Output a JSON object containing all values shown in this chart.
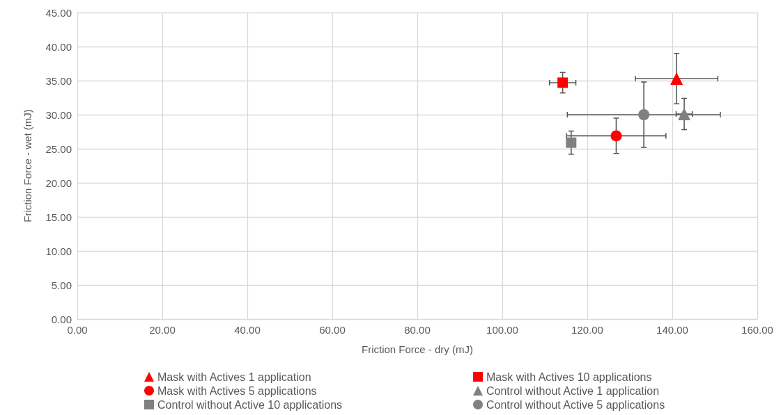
{
  "chart_data": {
    "type": "scatter",
    "xlabel": "Friction Force - dry (mJ)",
    "ylabel": "Friction Force - wet (mJ)",
    "xlim": [
      0,
      160
    ],
    "ylim": [
      0,
      45
    ],
    "xticks": [
      {
        "value": 0,
        "label": "0.00"
      },
      {
        "value": 20,
        "label": "20.00"
      },
      {
        "value": 40,
        "label": "40.00"
      },
      {
        "value": 60,
        "label": "60.00"
      },
      {
        "value": 80,
        "label": "80.00"
      },
      {
        "value": 100,
        "label": "100.00"
      },
      {
        "value": 120,
        "label": "120.00"
      },
      {
        "value": 140,
        "label": "140.00"
      },
      {
        "value": 160,
        "label": "160.00"
      }
    ],
    "yticks": [
      {
        "value": 0,
        "label": "0.00"
      },
      {
        "value": 5,
        "label": "5.00"
      },
      {
        "value": 10,
        "label": "10.00"
      },
      {
        "value": 15,
        "label": "15.00"
      },
      {
        "value": 20,
        "label": "20.00"
      },
      {
        "value": 25,
        "label": "25.00"
      },
      {
        "value": 30,
        "label": "30.00"
      },
      {
        "value": 35,
        "label": "35.00"
      },
      {
        "value": 40,
        "label": "40.00"
      },
      {
        "value": 45,
        "label": "45.00"
      }
    ],
    "grid": true,
    "legend": "bottom",
    "series": [
      {
        "name": "Mask with Actives 1 application",
        "color": "#ff0000",
        "marker": "triangle",
        "x": [
          141.0
        ],
        "values": [
          35.3
        ],
        "errors": [
          3.7
        ],
        "xerrors": [
          9.7
        ]
      },
      {
        "name": "Mask with Actives 10 applications",
        "color": "#ff0000",
        "marker": "square",
        "x": [
          114.2
        ],
        "values": [
          34.7
        ],
        "errors": [
          1.5
        ],
        "xerrors": [
          3.1
        ]
      },
      {
        "name": "Mask with Actives 5 applications",
        "color": "#ff0000",
        "marker": "circle",
        "x": [
          126.8
        ],
        "values": [
          26.9
        ],
        "errors": [
          2.6
        ],
        "xerrors": [
          11.7
        ]
      },
      {
        "name": "Control without Active 1 application",
        "color": "#808080",
        "marker": "triangle",
        "x": [
          142.8
        ],
        "values": [
          30.1
        ],
        "errors": [
          2.3
        ],
        "xerrors": [
          1.9
        ]
      },
      {
        "name": "Control without Active 10 applications",
        "color": "#808080",
        "marker": "square",
        "x": [
          116.2
        ],
        "values": [
          25.9
        ],
        "errors": [
          1.7
        ],
        "xerrors": [
          null
        ]
      },
      {
        "name": "Control without Active 5 applications",
        "color": "#808080",
        "marker": "circle",
        "x": [
          133.3
        ],
        "values": [
          30.0
        ],
        "errors": [
          4.8
        ],
        "xerrors": [
          18.0
        ]
      }
    ]
  }
}
